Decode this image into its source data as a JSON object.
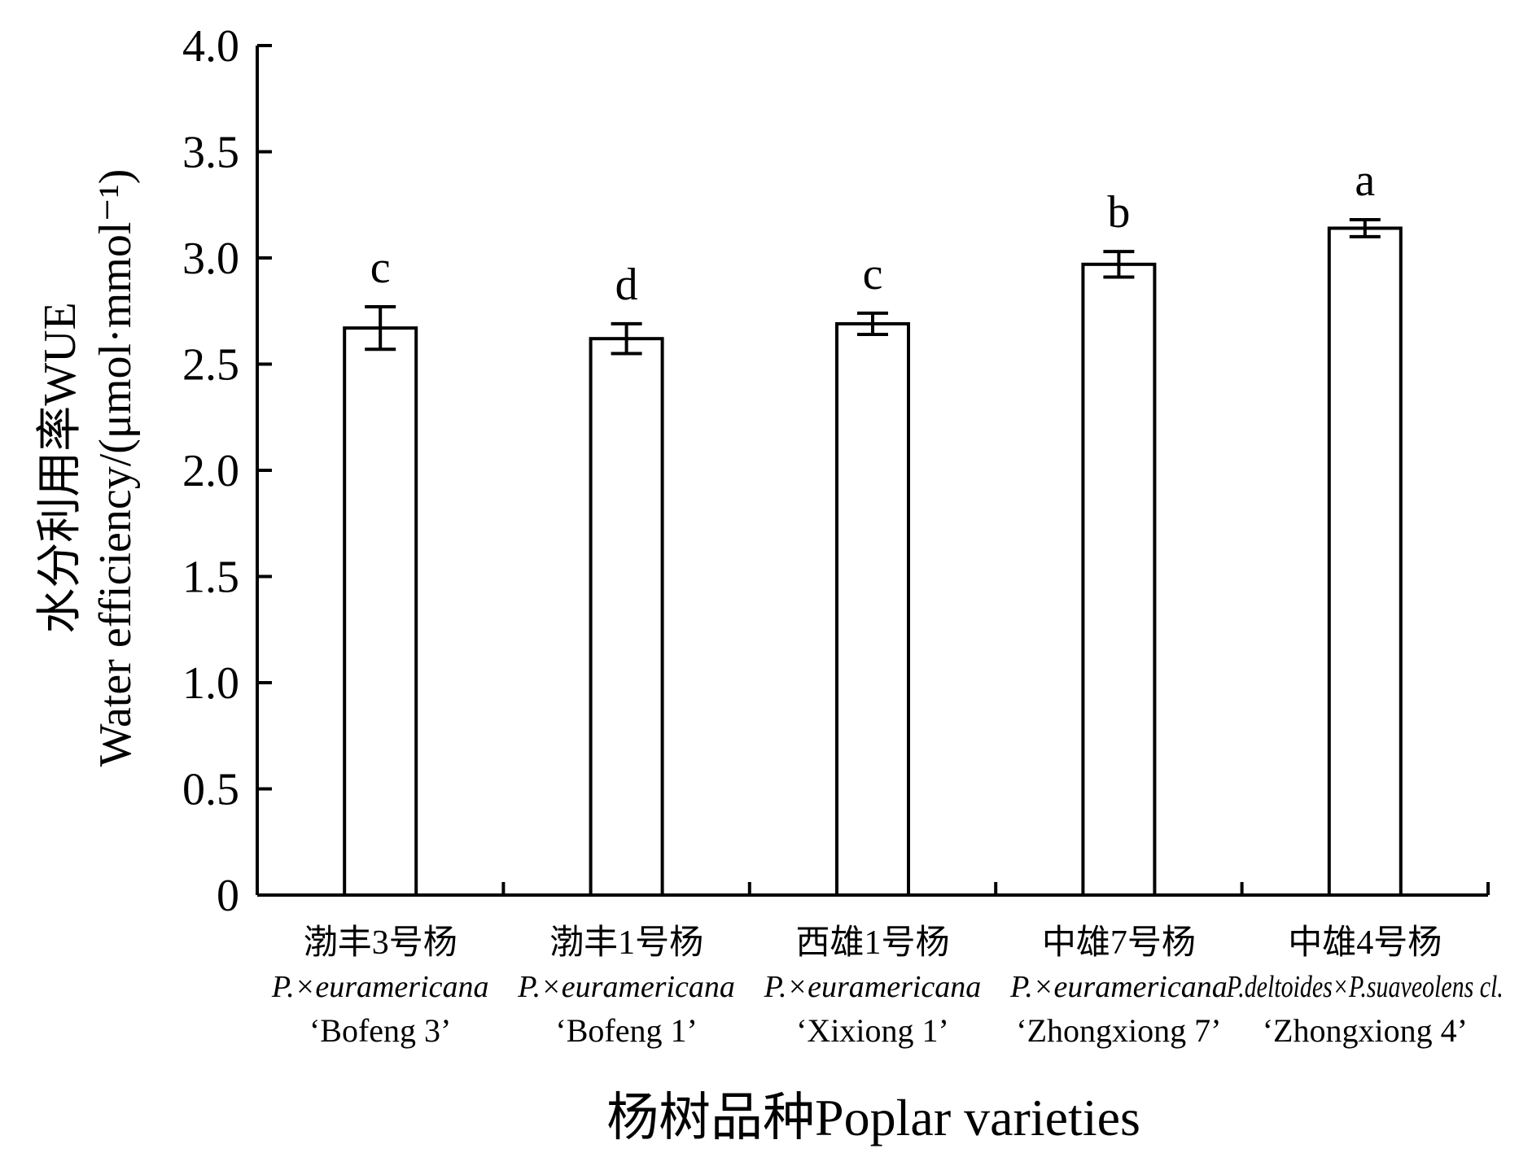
{
  "chart_data": {
    "type": "bar",
    "categories": [
      {
        "cn": "渤丰3号杨",
        "species": "P.×euramericana",
        "cultivar": "‘Bofeng 3’"
      },
      {
        "cn": "渤丰1号杨",
        "species": "P.×euramericana",
        "cultivar": "‘Bofeng 1’"
      },
      {
        "cn": "西雄1号杨",
        "species": "P.×euramericana",
        "cultivar": "‘Xixiong 1’"
      },
      {
        "cn": "中雄7号杨",
        "species": "P.×euramericana",
        "cultivar": "‘Zhongxiong 7’"
      },
      {
        "cn": "中雄4号杨",
        "species": "P.deltoides×P.suaveolens cl.",
        "cultivar": "‘Zhongxiong 4’"
      }
    ],
    "values": [
      2.67,
      2.62,
      2.69,
      2.97,
      3.14
    ],
    "errors": [
      0.1,
      0.07,
      0.05,
      0.06,
      0.04
    ],
    "significance_letters": [
      "c",
      "d",
      "c",
      "b",
      "a"
    ],
    "xlabel": "杨树品种Poplar varieties",
    "ylabel_cn": "水分利用率WUE",
    "ylabel_en": "Water efficiency/(μmol·mmol⁻¹)",
    "ylim": [
      0,
      4.0
    ],
    "yticks": [
      "0",
      "0.5",
      "1.0",
      "1.5",
      "2.0",
      "2.5",
      "3.0",
      "3.5",
      "4.0"
    ],
    "bar_fill": "#ffffff",
    "bar_stroke": "#000000",
    "grid": false
  }
}
